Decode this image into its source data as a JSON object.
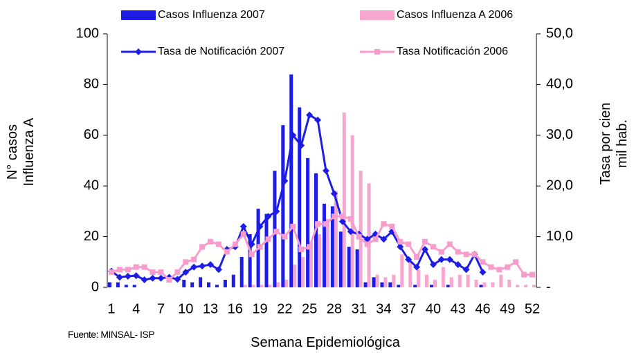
{
  "chart_data": {
    "type": "bar",
    "categories": [
      1,
      null,
      null,
      4,
      null,
      null,
      7,
      null,
      null,
      10,
      null,
      null,
      13,
      null,
      null,
      16,
      null,
      null,
      19,
      null,
      null,
      22,
      null,
      null,
      25,
      null,
      null,
      28,
      null,
      null,
      31,
      null,
      null,
      34,
      null,
      null,
      37,
      null,
      null,
      40,
      null,
      null,
      43,
      null,
      null,
      46,
      null,
      null,
      49,
      null,
      null,
      52
    ],
    "series": [
      {
        "name": "Casos Influenza 2007",
        "type": "bar",
        "color": "#1c1ce6",
        "values": [
          2,
          2,
          1,
          1,
          0,
          0,
          0,
          0,
          0,
          3,
          2,
          4,
          2,
          1,
          3,
          5,
          12,
          21,
          31,
          29,
          46,
          64,
          84,
          71,
          51,
          45,
          33,
          32,
          22,
          16,
          15,
          2,
          4,
          2,
          2,
          1,
          0,
          1,
          0,
          1,
          0,
          1,
          0,
          0,
          0,
          1,
          null,
          null,
          null,
          null,
          null,
          null
        ]
      },
      {
        "name": "Casos Influenza A 2006",
        "type": "bar",
        "color": "#f7a6d0",
        "values": [
          0,
          0,
          0,
          0,
          0,
          0,
          0,
          0,
          0,
          0,
          0,
          0,
          0,
          0,
          0,
          0,
          1,
          1,
          1,
          1,
          2,
          3,
          9,
          12,
          18,
          21,
          27,
          38,
          69,
          60,
          46,
          41,
          5,
          4,
          5,
          13,
          10,
          7,
          5,
          3,
          8,
          4,
          5,
          5,
          3,
          2,
          2,
          5,
          3,
          1,
          1,
          1
        ]
      },
      {
        "name": "Tasa de Notificación 2007",
        "type": "line",
        "axis": "y2",
        "marker": "diamond",
        "color": "#1c1ce6",
        "values": [
          3.2,
          2,
          2.2,
          2.3,
          1.5,
          1.8,
          1.8,
          2,
          1.6,
          3,
          4,
          4.2,
          4.5,
          3.5,
          7.5,
          8,
          12,
          8.5,
          12,
          14,
          15,
          21,
          30,
          28,
          34,
          33,
          23,
          18.5,
          13,
          11,
          10.5,
          9.5,
          10.5,
          9.5,
          11,
          8,
          5.5,
          4,
          7.5,
          4.5,
          5.5,
          5.5,
          4.5,
          3.5,
          6.5,
          3,
          null,
          null,
          null,
          null,
          null,
          null
        ]
      },
      {
        "name": "Tasa Notificación 2006",
        "type": "line",
        "axis": "y2",
        "marker": "square",
        "color": "#f79ccb",
        "values": [
          3,
          3.5,
          3.5,
          4,
          4,
          3,
          3,
          1.5,
          3,
          5,
          5.5,
          8,
          9,
          8.5,
          7,
          8.5,
          10.5,
          6.5,
          8,
          9.5,
          11,
          10,
          12,
          7.5,
          8,
          12.5,
          12.5,
          14,
          14,
          13.5,
          10,
          8.5,
          9.5,
          12.5,
          12,
          9,
          8.5,
          6,
          9,
          8,
          7,
          8.5,
          7,
          6.5,
          6.5,
          5,
          4,
          3.5,
          4,
          5,
          2.5,
          2.5
        ]
      }
    ],
    "ylim": [
      0,
      100
    ],
    "yticks": [
      0,
      20,
      40,
      60,
      80,
      100
    ],
    "y2lim": [
      0,
      50
    ],
    "y2ticks": [
      {
        "value": 0,
        "label": "-"
      },
      {
        "value": 10,
        "label": "10,0"
      },
      {
        "value": 20,
        "label": "20,0"
      },
      {
        "value": 30,
        "label": "30,0"
      },
      {
        "value": 40,
        "label": "40,0"
      },
      {
        "value": 50,
        "label": "50,0"
      }
    ],
    "ylabel": "N° casos Influenza A",
    "y2label": "Tasa por cien mil hab.",
    "xlabel": "Semana Epidemiológica",
    "source": "Fuente: MINSAL- ISP",
    "grid": false
  }
}
